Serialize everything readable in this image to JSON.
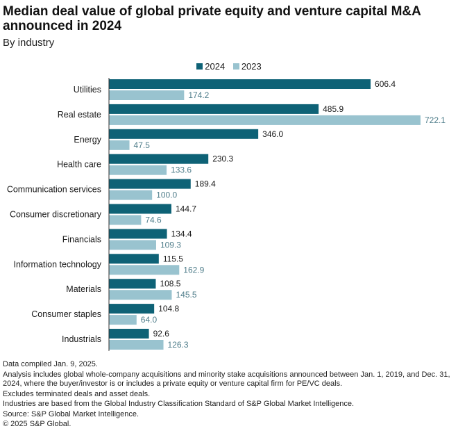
{
  "header": {
    "title": "Median deal value of global private equity and venture capital M&A announced in 2024",
    "subtitle": "By industry"
  },
  "legend": [
    {
      "label": "2024",
      "color": "#0e6276"
    },
    {
      "label": "2023",
      "color": "#99c3cf"
    }
  ],
  "chart_data": {
    "type": "bar",
    "orientation": "horizontal",
    "title": "Median deal value of global private equity and venture capital M&A announced in 2024",
    "subtitle": "By industry",
    "categories": [
      "Utilities",
      "Real estate",
      "Energy",
      "Health care",
      "Communication services",
      "Consumer discretionary",
      "Financials",
      "Information technology",
      "Materials",
      "Consumer staples",
      "Industrials"
    ],
    "series": [
      {
        "name": "2024",
        "color": "#0e6276",
        "label_color": "#1a1a1a",
        "values": [
          606.4,
          485.9,
          346.0,
          230.3,
          189.4,
          144.7,
          134.4,
          115.5,
          108.5,
          104.8,
          92.6
        ]
      },
      {
        "name": "2023",
        "color": "#99c3cf",
        "label_color": "#4f7d8a",
        "values": [
          174.2,
          722.1,
          47.5,
          133.6,
          100.0,
          74.6,
          109.3,
          162.9,
          145.5,
          64.0,
          126.3
        ]
      }
    ],
    "xlim": [
      0,
      722.1
    ],
    "xlabel": "",
    "ylabel": "",
    "grid": false,
    "legend_position": "top-center"
  },
  "notes": [
    "Data compiled Jan. 9, 2025.",
    "Analysis includes global whole-company acquisitions and minority stake acquisitions announced between Jan. 1, 2019, and Dec. 31, 2024, where the buyer/investor is or includes a private equity or venture capital firm for PE/VC deals.",
    "Excludes terminated deals and asset deals.",
    "Industries are based from the Global Industry Classification Standard of S&P Global Market Intelligence.",
    "Source: S&P Global Market Intelligence.",
    "© 2025 S&P Global."
  ]
}
